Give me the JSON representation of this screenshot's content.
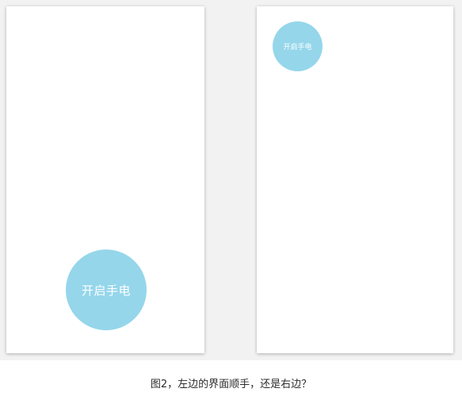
{
  "colors": {
    "button_fill": "#95d6eb",
    "button_text": "#ffffff"
  },
  "left_screen": {
    "button_label": "开启手电"
  },
  "right_screen": {
    "button_label": "开启手电"
  },
  "caption": "图2，左边的界面顺手，还是右边？"
}
